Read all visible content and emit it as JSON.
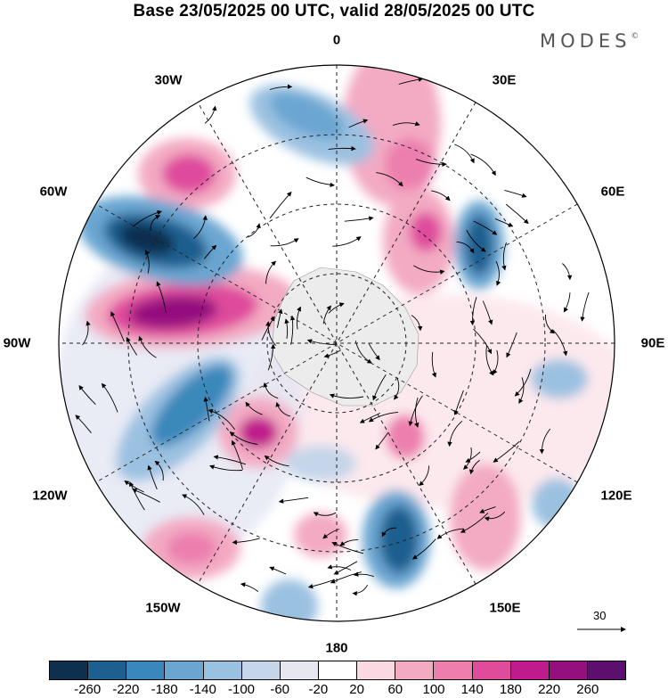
{
  "title": "Base 23/05/2025 00 UTC, valid 28/05/2025 00 UTC",
  "brand": "MODES",
  "brand_mark": "©",
  "longitude_labels": {
    "lon_0": "0",
    "lon_30e": "30E",
    "lon_60e": "60E",
    "lon_90e": "90E",
    "lon_120e": "120E",
    "lon_150e": "150E",
    "lon_180": "180",
    "lon_150w": "150W",
    "lon_120w": "120W",
    "lon_90w": "90W",
    "lon_60w": "60W",
    "lon_30w": "30W"
  },
  "reference_vector_label": "30",
  "colorbar": {
    "colors": [
      "#0f2f4f",
      "#1d5f8f",
      "#3a88bb",
      "#6ba6d1",
      "#9bc1e1",
      "#c5d6ea",
      "#e7e7f2",
      "#ffffff",
      "#fad9e2",
      "#f3aac3",
      "#ec7fae",
      "#df4c9c",
      "#c01b8c",
      "#94107e",
      "#5c0f6f"
    ],
    "tick_labels": [
      "-260",
      "-220",
      "-180",
      "-140",
      "-100",
      "-60",
      "-20",
      "20",
      "60",
      "100",
      "140",
      "180",
      "220",
      "260"
    ]
  }
}
